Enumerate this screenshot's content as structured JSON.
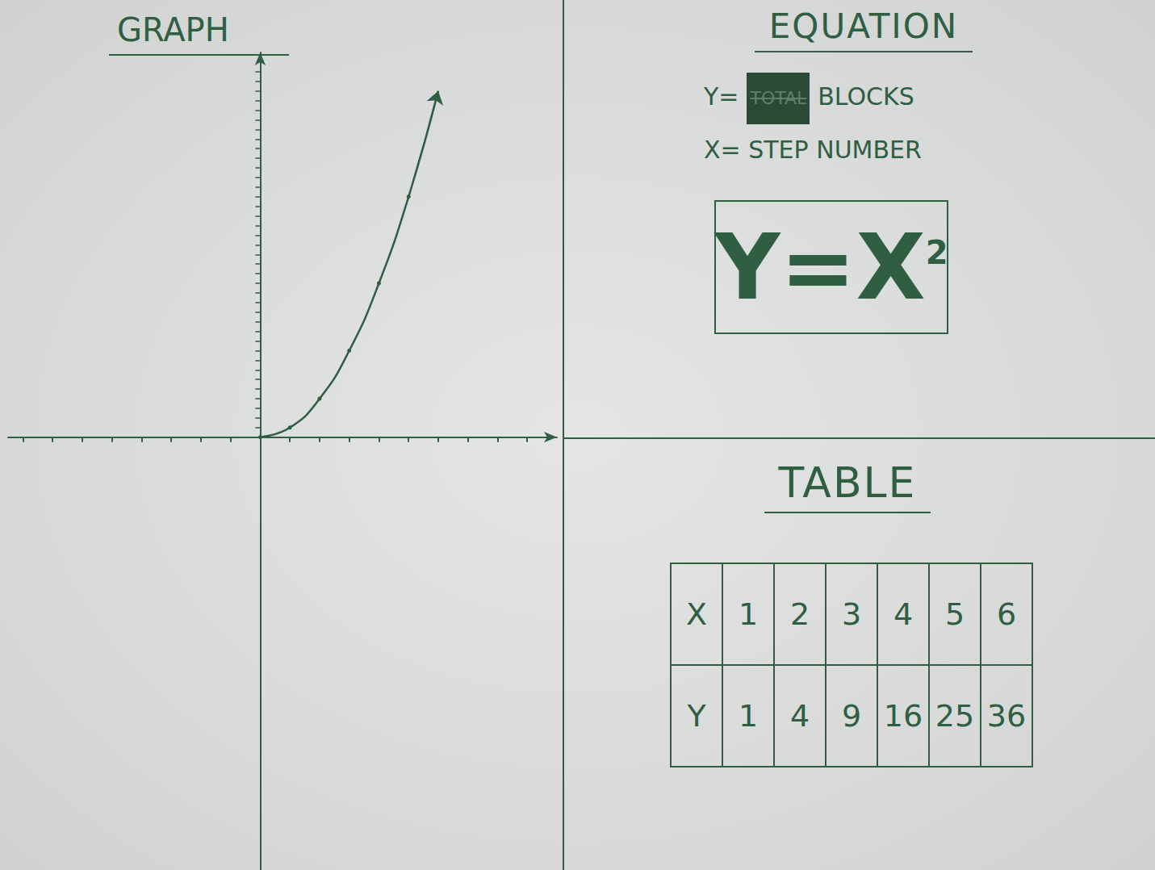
{
  "chart_data": {
    "type": "line",
    "title": "GRAPH",
    "x": [
      0,
      1,
      2,
      3,
      4,
      5,
      6
    ],
    "values": [
      0,
      1,
      4,
      9,
      16,
      25,
      36
    ],
    "xlim": [
      -8.5,
      10
    ],
    "xticks": [
      -8,
      -7,
      -6,
      -5,
      -4,
      -3,
      -2,
      -1,
      0,
      1,
      2,
      3,
      4,
      5,
      6,
      7,
      8,
      9
    ],
    "ylim": [
      -45,
      40
    ],
    "yticks": [
      0,
      1,
      2,
      3,
      4,
      5,
      6,
      7,
      8,
      9,
      10,
      11,
      12,
      13,
      14,
      15,
      16,
      17,
      18,
      19,
      20,
      21,
      22,
      23,
      24,
      25,
      26,
      27,
      28,
      29,
      30,
      31,
      32,
      33,
      34,
      35,
      36,
      37,
      38
    ],
    "tick_labels": false,
    "grid": false,
    "color": "#2f5e42",
    "marker": "circle",
    "line_style": "solid"
  },
  "equation": {
    "title": "EQUATION",
    "definitions": [
      {
        "label": "Y=",
        "struck": "TOTAL",
        "text": "BLOCKS"
      },
      {
        "label": "X=",
        "text": "STEP NUMBER"
      }
    ],
    "formula": {
      "base": "Y=X",
      "exponent": "2"
    }
  },
  "table": {
    "title": "TABLE",
    "rows": [
      [
        "X",
        1,
        2,
        3,
        4,
        5,
        6
      ],
      [
        "Y",
        1,
        4,
        9,
        16,
        25,
        36
      ]
    ]
  }
}
